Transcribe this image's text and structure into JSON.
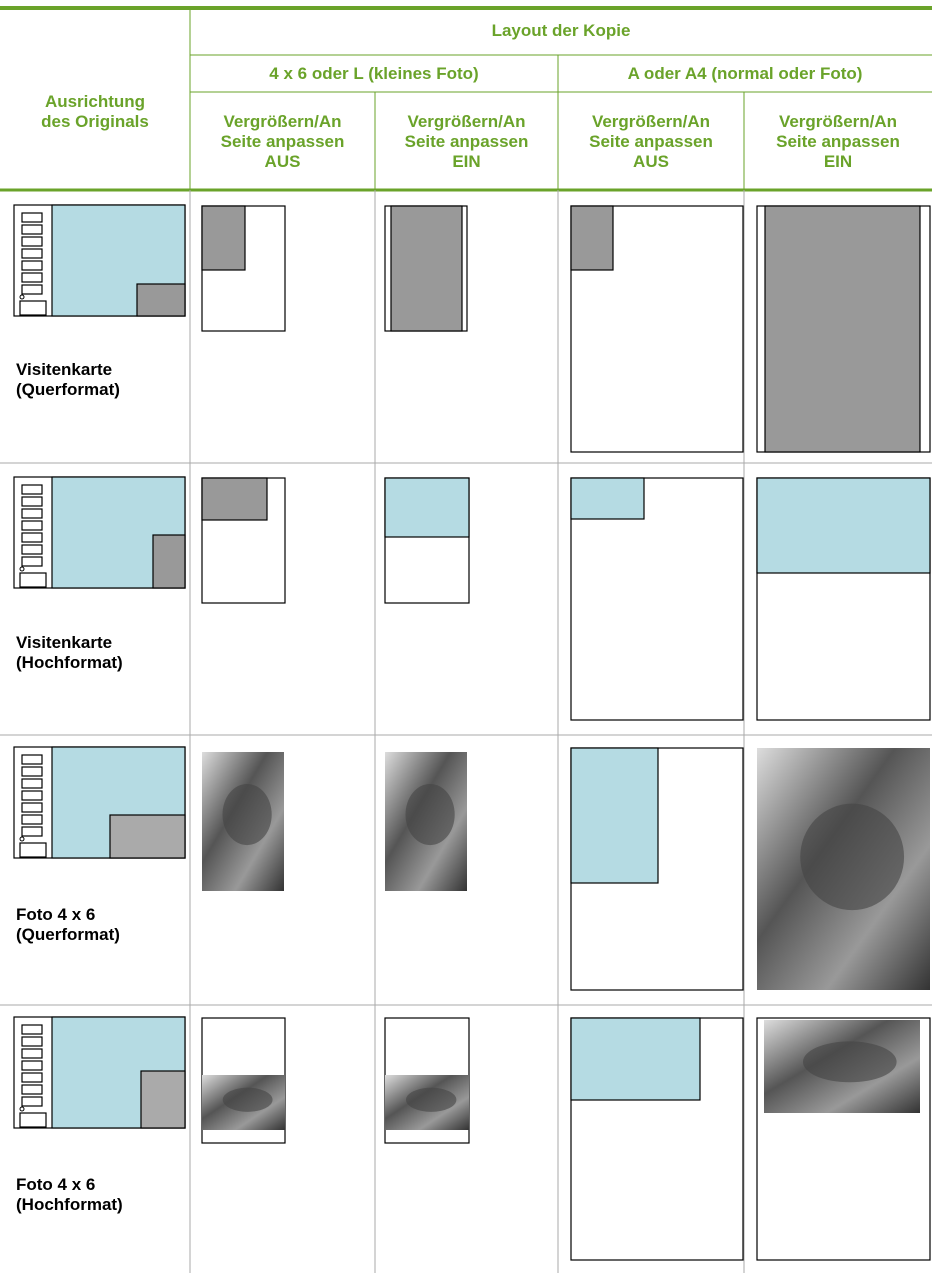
{
  "header": {
    "orientation_label": [
      "Ausrichtung",
      "des Originals"
    ],
    "title": "Layout der Kopie",
    "groups": [
      "4 x 6 oder L (kleines Foto)",
      "A oder A4 (normal oder Foto)"
    ],
    "columns": [
      [
        "Vergrößern/An",
        "Seite anpassen",
        "AUS"
      ],
      [
        "Vergrößern/An",
        "Seite anpassen",
        "EIN"
      ],
      [
        "Vergrößern/An",
        "Seite anpassen",
        "AUS"
      ],
      [
        "Vergrößern/An",
        "Seite anpassen",
        "EIN"
      ]
    ]
  },
  "rows": [
    [
      "Visitenkarte",
      "(Querformat)"
    ],
    [
      "Visitenkarte",
      "(Hochformat)"
    ],
    [
      "Foto 4 x 6",
      "(Querformat)"
    ],
    [
      "Foto 4 x 6",
      "(Hochformat)"
    ]
  ]
}
